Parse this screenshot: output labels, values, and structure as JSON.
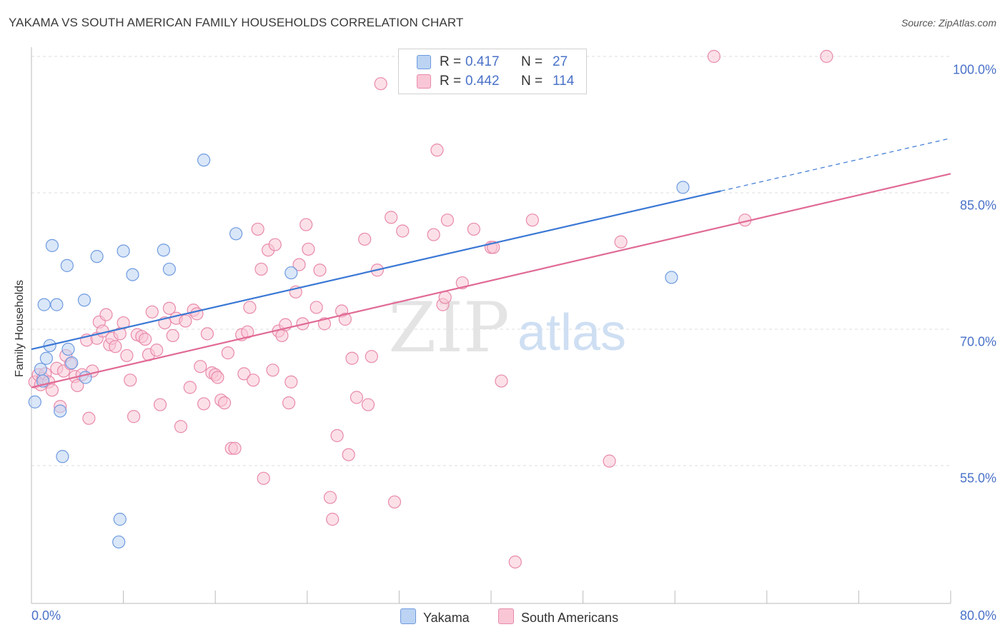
{
  "title": "YAKAMA VS SOUTH AMERICAN FAMILY HOUSEHOLDS CORRELATION CHART",
  "source": "Source: ZipAtlas.com",
  "watermark": {
    "zip": "ZIP",
    "atlas": "atlas"
  },
  "colors": {
    "yakama_fill": "#bcd3f3",
    "yakama_stroke": "#6f9be0",
    "yakama_line": "#3a78d4",
    "south_fill": "#f9c6d6",
    "south_stroke": "#e88aaa",
    "south_line": "#e06a95",
    "axis_text": "#4a72c8",
    "grid": "#dcdcdc"
  },
  "legend": {
    "rows": [
      {
        "r_key": "R =",
        "r_value": "0.417",
        "n_key": "N =",
        "n_value": "27"
      },
      {
        "r_key": "R =",
        "r_value": "0.442",
        "n_key": "N =",
        "n_value": "114"
      }
    ]
  },
  "bottom_legend": [
    "Yakama",
    "South Americans"
  ],
  "chart_data": {
    "type": "scatter",
    "title": "YAKAMA VS SOUTH AMERICAN FAMILY HOUSEHOLDS CORRELATION CHART",
    "xlabel": "",
    "ylabel": "Family Households",
    "xlim": [
      0,
      80
    ],
    "ylim": [
      42,
      101
    ],
    "x_tick_labels": [
      "0.0%",
      "80.0%"
    ],
    "y_tick_labels": [
      "55.0%",
      "70.0%",
      "85.0%",
      "100.0%"
    ],
    "y_gridlines": [
      55,
      70,
      85,
      100
    ],
    "grid": true,
    "legend_position": "top-center",
    "series": [
      {
        "name": "Yakama",
        "r": 0.417,
        "n": 27,
        "trend": {
          "x0": 0,
          "y0": 67.8,
          "x1": 60,
          "y1": 85.2,
          "dashed_to_x": 80,
          "dashed_to_y": 91.0
        },
        "points": [
          [
            0.3,
            62.0
          ],
          [
            0.8,
            65.6
          ],
          [
            1.0,
            64.3
          ],
          [
            1.1,
            72.7
          ],
          [
            1.3,
            66.8
          ],
          [
            1.6,
            68.2
          ],
          [
            1.8,
            79.2
          ],
          [
            2.2,
            72.7
          ],
          [
            2.5,
            61.0
          ],
          [
            2.7,
            56.0
          ],
          [
            3.1,
            77.0
          ],
          [
            3.2,
            67.8
          ],
          [
            3.5,
            66.3
          ],
          [
            4.6,
            73.2
          ],
          [
            4.7,
            64.7
          ],
          [
            5.7,
            78.0
          ],
          [
            7.6,
            46.6
          ],
          [
            7.7,
            49.1
          ],
          [
            8.0,
            78.6
          ],
          [
            8.8,
            76.0
          ],
          [
            11.5,
            78.7
          ],
          [
            12.0,
            76.6
          ],
          [
            15.0,
            88.6
          ],
          [
            17.8,
            80.5
          ],
          [
            22.6,
            76.2
          ],
          [
            56.7,
            85.6
          ],
          [
            55.7,
            75.7
          ]
        ]
      },
      {
        "name": "South Americans",
        "r": 0.442,
        "n": 114,
        "trend": {
          "x0": 0,
          "y0": 63.6,
          "x1": 80,
          "y1": 87.1
        },
        "points": [
          [
            0.3,
            64.2
          ],
          [
            0.6,
            65.0
          ],
          [
            0.8,
            63.9
          ],
          [
            1.0,
            64.6
          ],
          [
            1.2,
            65.1
          ],
          [
            1.5,
            64.2
          ],
          [
            1.8,
            63.3
          ],
          [
            2.2,
            65.7
          ],
          [
            2.5,
            61.5
          ],
          [
            2.8,
            65.4
          ],
          [
            3.0,
            67.1
          ],
          [
            3.4,
            66.2
          ],
          [
            3.8,
            64.8
          ],
          [
            4.0,
            63.8
          ],
          [
            4.4,
            65.0
          ],
          [
            4.8,
            68.8
          ],
          [
            5.0,
            60.2
          ],
          [
            5.3,
            65.4
          ],
          [
            5.7,
            69.0
          ],
          [
            5.9,
            70.8
          ],
          [
            6.2,
            69.8
          ],
          [
            6.5,
            71.6
          ],
          [
            6.8,
            68.3
          ],
          [
            7.0,
            69.0
          ],
          [
            7.3,
            68.1
          ],
          [
            7.7,
            69.5
          ],
          [
            8.0,
            70.7
          ],
          [
            8.3,
            67.1
          ],
          [
            8.6,
            64.4
          ],
          [
            8.9,
            60.4
          ],
          [
            9.2,
            69.4
          ],
          [
            9.6,
            69.2
          ],
          [
            9.9,
            68.9
          ],
          [
            10.2,
            67.2
          ],
          [
            10.5,
            71.9
          ],
          [
            10.9,
            67.7
          ],
          [
            11.2,
            61.7
          ],
          [
            11.6,
            70.7
          ],
          [
            12.0,
            72.3
          ],
          [
            12.3,
            69.3
          ],
          [
            12.6,
            71.2
          ],
          [
            13.0,
            59.3
          ],
          [
            13.4,
            70.9
          ],
          [
            13.8,
            63.6
          ],
          [
            14.1,
            72.1
          ],
          [
            14.4,
            71.7
          ],
          [
            14.7,
            65.9
          ],
          [
            15.0,
            61.8
          ],
          [
            15.3,
            69.5
          ],
          [
            15.7,
            65.2
          ],
          [
            16.0,
            65.0
          ],
          [
            16.2,
            64.7
          ],
          [
            16.5,
            62.2
          ],
          [
            16.8,
            61.9
          ],
          [
            17.1,
            67.4
          ],
          [
            17.4,
            56.9
          ],
          [
            17.7,
            56.9
          ],
          [
            18.3,
            69.4
          ],
          [
            18.5,
            65.1
          ],
          [
            18.8,
            69.7
          ],
          [
            19.0,
            72.4
          ],
          [
            19.3,
            64.4
          ],
          [
            19.7,
            81.0
          ],
          [
            20.0,
            76.6
          ],
          [
            20.2,
            53.6
          ],
          [
            20.6,
            78.7
          ],
          [
            21.0,
            65.5
          ],
          [
            21.2,
            79.3
          ],
          [
            21.5,
            69.8
          ],
          [
            21.8,
            69.3
          ],
          [
            22.1,
            70.5
          ],
          [
            22.4,
            61.9
          ],
          [
            22.6,
            64.2
          ],
          [
            23.0,
            74.1
          ],
          [
            23.3,
            77.1
          ],
          [
            23.6,
            70.6
          ],
          [
            23.9,
            81.5
          ],
          [
            24.1,
            78.8
          ],
          [
            24.8,
            72.4
          ],
          [
            25.1,
            76.5
          ],
          [
            25.5,
            70.6
          ],
          [
            26.0,
            51.5
          ],
          [
            26.2,
            49.1
          ],
          [
            26.6,
            58.3
          ],
          [
            27.0,
            72.0
          ],
          [
            27.3,
            71.1
          ],
          [
            27.6,
            56.2
          ],
          [
            27.9,
            66.8
          ],
          [
            28.3,
            62.5
          ],
          [
            29.0,
            79.9
          ],
          [
            29.3,
            61.7
          ],
          [
            29.6,
            67.0
          ],
          [
            30.1,
            76.5
          ],
          [
            30.4,
            97.0
          ],
          [
            31.3,
            82.3
          ],
          [
            31.6,
            51.0
          ],
          [
            32.3,
            80.8
          ],
          [
            35.0,
            80.4
          ],
          [
            35.3,
            89.7
          ],
          [
            35.8,
            72.7
          ],
          [
            36.2,
            82.0
          ],
          [
            37.5,
            75.1
          ],
          [
            38.5,
            81.0
          ],
          [
            40.0,
            79.0
          ],
          [
            40.2,
            79.0
          ],
          [
            40.9,
            64.3
          ],
          [
            42.1,
            44.4
          ],
          [
            43.6,
            82.0
          ],
          [
            50.3,
            55.5
          ],
          [
            51.3,
            79.6
          ],
          [
            59.4,
            100.0
          ],
          [
            62.1,
            82.0
          ],
          [
            69.2,
            100.0
          ],
          [
            36.0,
            73.5
          ]
        ]
      }
    ]
  }
}
